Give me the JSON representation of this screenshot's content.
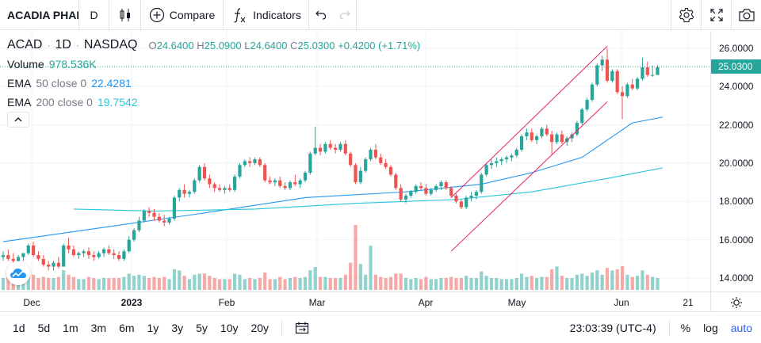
{
  "toolbar": {
    "symbol": "ACADIA PHARMACEUTICALS",
    "interval": "D",
    "chart_type_icon": "candles-icon",
    "compare_label": "Compare",
    "indicators_label": "Indicators",
    "undo_icon": "undo-icon",
    "redo_icon": "redo-icon",
    "settings_icon": "gear-icon",
    "fullscreen_icon": "fullscreen-icon",
    "snapshot_icon": "camera-icon"
  },
  "legend": {
    "ticker": "ACAD",
    "interval": "1D",
    "exchange": "NASDAQ",
    "o_label": "O",
    "o_value": "24.6400",
    "h_label": "H",
    "h_value": "25.0900",
    "l_label": "L",
    "l_value": "24.6400",
    "c_label": "C",
    "c_value": "25.0300",
    "change": "+0.4200 (+1.71%)",
    "volume_label": "Volume",
    "volume_value": "978.536K",
    "ema50_label": "EMA",
    "ema50_params": "50 close 0",
    "ema50_value": "22.4281",
    "ema200_label": "EMA",
    "ema200_params": "200 close 0",
    "ema200_value": "19.7542"
  },
  "colors": {
    "up": "#26a69a",
    "down": "#ef5350",
    "ema50": "#2196f3",
    "ema200": "#26c6da",
    "trendline": "#e91e63",
    "accent": "#2962ff"
  },
  "price_scale": {
    "ticks": [
      "26.0000",
      "24.0000",
      "22.0000",
      "20.0000",
      "18.0000",
      "16.0000",
      "14.0000"
    ],
    "last_price": "25.0300"
  },
  "time_axis": {
    "ticks": [
      "Dec",
      "2023",
      "Feb",
      "Mar",
      "Apr",
      "May",
      "Jun",
      "21"
    ]
  },
  "bottom_bar": {
    "ranges": [
      "1d",
      "5d",
      "1m",
      "3m",
      "6m",
      "1y",
      "3y",
      "5y",
      "10y",
      "20y"
    ],
    "time": "23:03:39 (UTC-4)",
    "percent": "%",
    "log": "log",
    "auto": "auto"
  },
  "chart_data": {
    "type": "candlestick",
    "symbol": "ACAD",
    "ylim": [
      13.3,
      26.9
    ],
    "x": [
      "2022-11-21",
      "2023-06-23"
    ],
    "series": [
      {
        "name": "ACAD",
        "values": [
          [
            15.1,
            15.4,
            14.9,
            15.2
          ],
          [
            15.2,
            15.5,
            14.9,
            15.0
          ],
          [
            15.0,
            15.3,
            14.8,
            14.9
          ],
          [
            14.9,
            15.2,
            14.7,
            15.1
          ],
          [
            15.1,
            15.3,
            14.9,
            15.3
          ],
          [
            15.3,
            15.8,
            15.2,
            15.7
          ],
          [
            15.7,
            15.9,
            15.1,
            15.2
          ],
          [
            15.2,
            15.4,
            14.9,
            15.0
          ],
          [
            15.0,
            15.2,
            14.6,
            14.7
          ],
          [
            14.7,
            14.9,
            14.4,
            14.6
          ],
          [
            14.6,
            14.9,
            14.4,
            14.8
          ],
          [
            14.8,
            15.1,
            14.5,
            14.6
          ],
          [
            14.6,
            15.8,
            14.6,
            15.7
          ],
          [
            15.7,
            16.1,
            15.3,
            15.5
          ],
          [
            15.5,
            15.7,
            15.1,
            15.2
          ],
          [
            15.2,
            15.4,
            15.0,
            15.3
          ],
          [
            15.3,
            15.5,
            15.1,
            15.4
          ],
          [
            15.4,
            15.6,
            15.0,
            15.2
          ],
          [
            15.2,
            15.4,
            14.9,
            15.1
          ],
          [
            15.1,
            15.4,
            15.0,
            15.3
          ],
          [
            15.3,
            15.6,
            15.1,
            15.5
          ],
          [
            15.5,
            15.7,
            15.2,
            15.3
          ],
          [
            15.3,
            15.5,
            15.0,
            15.2
          ],
          [
            15.2,
            15.4,
            14.9,
            15.0
          ],
          [
            15.0,
            15.5,
            14.9,
            15.4
          ],
          [
            15.4,
            16.2,
            15.3,
            16.0
          ],
          [
            16.0,
            16.6,
            15.9,
            16.5
          ],
          [
            16.5,
            17.2,
            16.4,
            17.0
          ],
          [
            17.0,
            17.6,
            16.9,
            17.5
          ],
          [
            17.5,
            17.7,
            17.2,
            17.4
          ],
          [
            17.4,
            17.6,
            17.0,
            17.2
          ],
          [
            17.2,
            17.4,
            16.9,
            17.0
          ],
          [
            17.0,
            17.3,
            16.7,
            16.9
          ],
          [
            16.9,
            17.2,
            16.8,
            17.1
          ],
          [
            17.1,
            18.3,
            17.0,
            18.2
          ],
          [
            18.2,
            18.7,
            18.0,
            18.6
          ],
          [
            18.6,
            18.9,
            18.2,
            18.4
          ],
          [
            18.4,
            18.6,
            18.2,
            18.5
          ],
          [
            18.5,
            19.2,
            18.4,
            19.1
          ],
          [
            19.1,
            19.9,
            19.0,
            19.8
          ],
          [
            19.8,
            20.0,
            19.1,
            19.2
          ],
          [
            19.2,
            19.4,
            18.7,
            18.9
          ],
          [
            18.9,
            19.0,
            18.5,
            18.7
          ],
          [
            18.7,
            18.9,
            18.5,
            18.6
          ],
          [
            18.6,
            18.8,
            18.4,
            18.7
          ],
          [
            18.7,
            18.9,
            18.5,
            18.6
          ],
          [
            18.6,
            19.4,
            18.5,
            19.3
          ],
          [
            19.3,
            20.0,
            19.2,
            19.9
          ],
          [
            19.9,
            20.2,
            19.8,
            20.1
          ],
          [
            20.1,
            20.3,
            19.8,
            20.0
          ],
          [
            20.0,
            20.3,
            19.9,
            20.2
          ],
          [
            20.2,
            20.3,
            19.8,
            19.9
          ],
          [
            19.9,
            20.0,
            19.0,
            19.1
          ],
          [
            19.1,
            19.3,
            18.9,
            19.0
          ],
          [
            19.0,
            19.2,
            18.8,
            19.1
          ],
          [
            19.1,
            19.3,
            18.7,
            18.8
          ],
          [
            18.8,
            19.0,
            18.6,
            18.7
          ],
          [
            18.7,
            19.1,
            18.6,
            19.0
          ],
          [
            19.0,
            19.4,
            18.8,
            18.9
          ],
          [
            18.9,
            19.2,
            18.7,
            19.1
          ],
          [
            19.1,
            19.6,
            19.0,
            19.5
          ],
          [
            19.5,
            20.6,
            19.4,
            20.5
          ],
          [
            20.5,
            21.9,
            20.4,
            20.8
          ],
          [
            20.8,
            21.0,
            20.4,
            20.6
          ],
          [
            20.6,
            21.1,
            20.5,
            21.0
          ],
          [
            21.0,
            21.2,
            20.7,
            20.8
          ],
          [
            20.8,
            21.0,
            20.5,
            20.7
          ],
          [
            20.7,
            21.1,
            20.6,
            21.0
          ],
          [
            21.0,
            21.2,
            20.4,
            20.5
          ],
          [
            20.5,
            20.6,
            19.8,
            19.9
          ],
          [
            19.9,
            20.0,
            18.9,
            19.0
          ],
          [
            19.0,
            19.8,
            18.9,
            19.6
          ],
          [
            19.6,
            20.3,
            19.5,
            20.2
          ],
          [
            20.2,
            20.8,
            20.1,
            20.7
          ],
          [
            20.7,
            21.0,
            20.2,
            20.3
          ],
          [
            20.3,
            20.5,
            19.9,
            20.0
          ],
          [
            20.0,
            20.2,
            19.7,
            19.8
          ],
          [
            19.8,
            19.9,
            19.3,
            19.4
          ],
          [
            19.4,
            19.5,
            18.6,
            18.7
          ],
          [
            18.7,
            18.9,
            18.0,
            18.1
          ],
          [
            18.1,
            18.4,
            17.9,
            18.3
          ],
          [
            18.3,
            18.6,
            18.2,
            18.5
          ],
          [
            18.5,
            18.9,
            18.4,
            18.8
          ],
          [
            18.8,
            19.0,
            18.6,
            18.7
          ],
          [
            18.7,
            18.9,
            18.3,
            18.4
          ],
          [
            18.4,
            18.7,
            18.3,
            18.6
          ],
          [
            18.6,
            18.9,
            18.5,
            18.8
          ],
          [
            18.8,
            19.1,
            18.6,
            19.0
          ],
          [
            19.0,
            19.1,
            18.6,
            18.7
          ],
          [
            18.7,
            18.8,
            18.2,
            18.3
          ],
          [
            18.3,
            18.4,
            17.9,
            18.0
          ],
          [
            18.0,
            18.1,
            17.6,
            17.7
          ],
          [
            17.7,
            18.3,
            17.6,
            18.2
          ],
          [
            18.2,
            18.5,
            18.0,
            18.3
          ],
          [
            18.3,
            18.6,
            18.1,
            18.5
          ],
          [
            18.5,
            19.5,
            18.4,
            19.4
          ],
          [
            19.4,
            20.0,
            19.3,
            19.9
          ],
          [
            19.9,
            20.2,
            19.7,
            20.0
          ],
          [
            20.0,
            20.3,
            19.8,
            20.1
          ],
          [
            20.1,
            20.3,
            19.9,
            20.2
          ],
          [
            20.2,
            20.4,
            20.0,
            20.3
          ],
          [
            20.3,
            20.5,
            20.1,
            20.4
          ],
          [
            20.4,
            20.8,
            20.3,
            20.7
          ],
          [
            20.7,
            21.5,
            20.6,
            21.4
          ],
          [
            21.4,
            21.8,
            21.2,
            21.6
          ],
          [
            21.6,
            21.8,
            21.1,
            21.2
          ],
          [
            21.2,
            21.5,
            21.0,
            21.4
          ],
          [
            21.4,
            21.9,
            21.3,
            21.8
          ],
          [
            21.8,
            22.0,
            21.4,
            21.5
          ],
          [
            21.5,
            21.7,
            20.4,
            21.1
          ],
          [
            21.1,
            21.6,
            21.0,
            21.5
          ],
          [
            21.5,
            21.7,
            21.0,
            21.1
          ],
          [
            21.1,
            21.4,
            20.9,
            21.3
          ],
          [
            21.3,
            21.6,
            21.1,
            21.5
          ],
          [
            21.5,
            22.2,
            21.4,
            22.1
          ],
          [
            22.1,
            22.9,
            22.0,
            22.8
          ],
          [
            22.8,
            23.4,
            22.7,
            23.3
          ],
          [
            23.3,
            24.2,
            23.2,
            24.1
          ],
          [
            24.1,
            25.2,
            24.0,
            25.1
          ],
          [
            25.1,
            25.6,
            24.8,
            25.4
          ],
          [
            25.4,
            26.0,
            24.2,
            24.3
          ],
          [
            24.3,
            24.9,
            24.2,
            24.8
          ],
          [
            24.8,
            24.9,
            23.6,
            23.7
          ],
          [
            23.7,
            24.0,
            22.3,
            23.5
          ],
          [
            23.5,
            24.2,
            23.4,
            24.1
          ],
          [
            24.1,
            24.4,
            23.8,
            23.9
          ],
          [
            23.9,
            24.5,
            23.8,
            24.4
          ],
          [
            24.4,
            25.5,
            24.3,
            25.0
          ],
          [
            25.0,
            25.3,
            24.5,
            24.6
          ],
          [
            24.6,
            25.1,
            24.5,
            24.6
          ],
          [
            24.6,
            25.1,
            24.6,
            25.0
          ]
        ]
      },
      {
        "name": "EMA 50 close 0",
        "points": [
          [
            0,
            15.9
          ],
          [
            40,
            17.4
          ],
          [
            60,
            18.2
          ],
          [
            80,
            18.5
          ],
          [
            95,
            18.9
          ],
          [
            105,
            19.5
          ],
          [
            115,
            20.3
          ],
          [
            125,
            22.1
          ],
          [
            131,
            22.4
          ]
        ]
      },
      {
        "name": "EMA 200 close 0",
        "points": [
          [
            14,
            17.6
          ],
          [
            30,
            17.5
          ],
          [
            50,
            17.6
          ],
          [
            70,
            17.9
          ],
          [
            90,
            18.1
          ],
          [
            105,
            18.5
          ],
          [
            120,
            19.2
          ],
          [
            131,
            19.75
          ]
        ]
      }
    ],
    "trendlines": [
      [
        [
          89,
          18.2
        ],
        [
          120,
          26.1
        ]
      ],
      [
        [
          89,
          15.4
        ],
        [
          120,
          23.2
        ]
      ]
    ],
    "grid": true,
    "legend_position": "top-left"
  }
}
